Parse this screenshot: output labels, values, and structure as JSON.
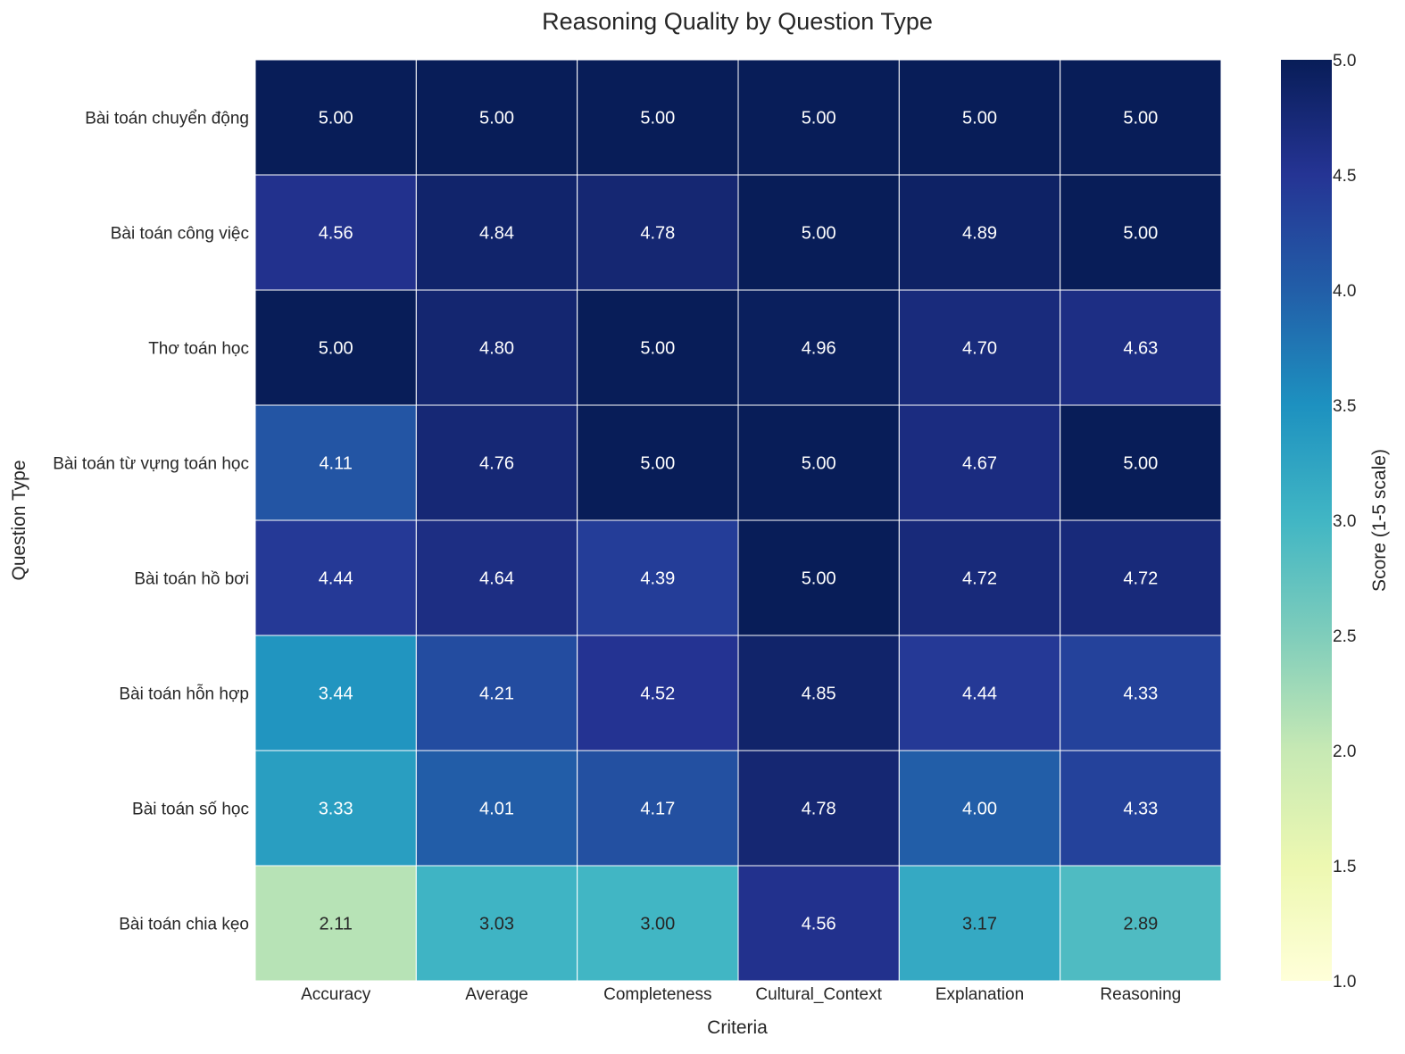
{
  "chart_data": {
    "type": "heatmap",
    "title": "Reasoning Quality by Question Type",
    "xlabel": "Criteria",
    "ylabel": "Question Type",
    "x_categories": [
      "Accuracy",
      "Average",
      "Completeness",
      "Cultural_Context",
      "Explanation",
      "Reasoning"
    ],
    "y_categories": [
      "Bài toán chuyển động",
      "Bài toán công việc",
      "Thơ toán học",
      "Bài toán từ vựng toán học",
      "Bài toán hồ bơi",
      "Bài toán hỗn hợp",
      "Bài toán số học",
      "Bài toán chia kẹo"
    ],
    "values": [
      [
        5.0,
        5.0,
        5.0,
        5.0,
        5.0,
        5.0
      ],
      [
        4.56,
        4.84,
        4.78,
        5.0,
        4.89,
        5.0
      ],
      [
        5.0,
        4.8,
        5.0,
        4.96,
        4.7,
        4.63
      ],
      [
        4.11,
        4.76,
        5.0,
        5.0,
        4.67,
        5.0
      ],
      [
        4.44,
        4.64,
        4.39,
        5.0,
        4.72,
        4.72
      ],
      [
        3.44,
        4.21,
        4.52,
        4.85,
        4.44,
        4.33
      ],
      [
        3.33,
        4.01,
        4.17,
        4.78,
        4.0,
        4.33
      ],
      [
        2.11,
        3.03,
        3.0,
        4.56,
        3.17,
        2.89
      ]
    ],
    "value_format_decimals": 2,
    "colorbar": {
      "label": "Score (1-5 scale)",
      "min": 1.0,
      "max": 5.0,
      "ticks": [
        "1.0",
        "1.5",
        "2.0",
        "2.5",
        "3.0",
        "3.5",
        "4.0",
        "4.5",
        "5.0"
      ],
      "colormap": "YlGnBu",
      "stops": [
        "#ffffd9",
        "#edf8b1",
        "#c7e9b4",
        "#7fcdbb",
        "#41b6c4",
        "#1d91c0",
        "#225ea8",
        "#253494",
        "#081d58"
      ]
    }
  }
}
